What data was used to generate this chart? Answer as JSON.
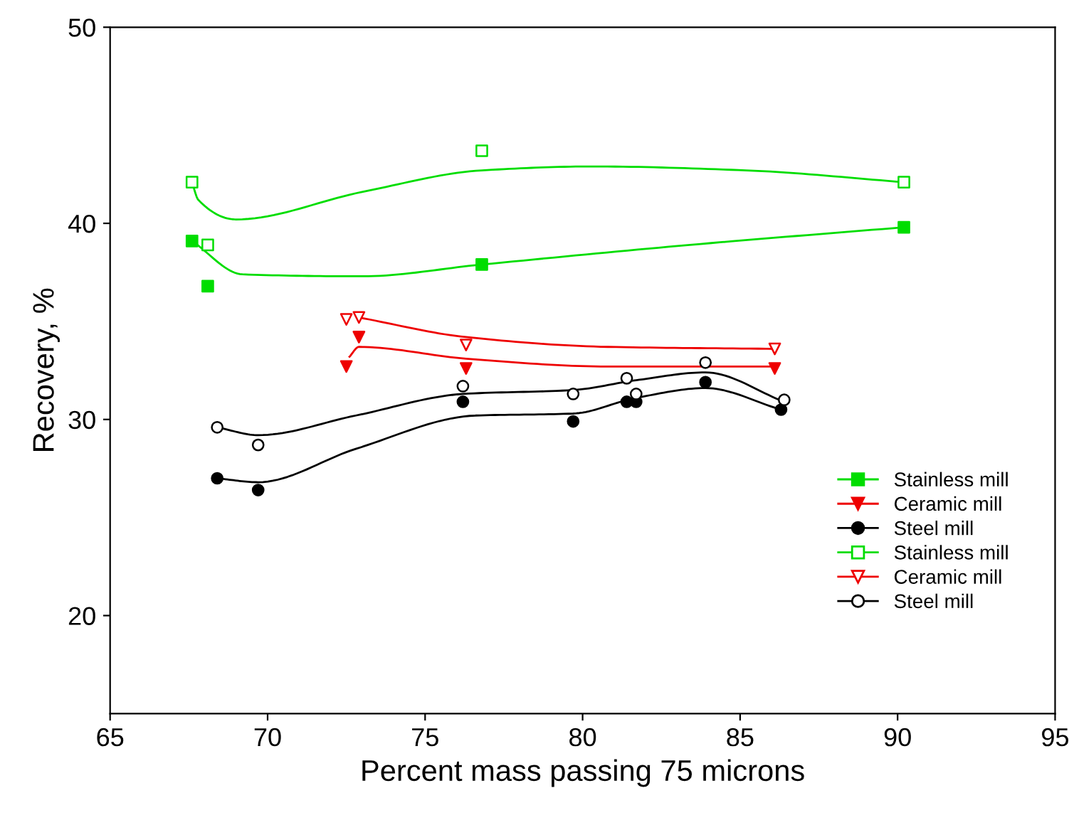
{
  "chart_data": {
    "type": "scatter",
    "xlabel": "Percent mass passing 75 microns",
    "ylabel": "Recovery, %",
    "xlim": [
      65,
      95
    ],
    "xticks": [
      65,
      70,
      75,
      80,
      85,
      90,
      95
    ],
    "ylim": [
      15,
      50
    ],
    "yticks": [
      20,
      30,
      40,
      50
    ],
    "grid": false,
    "legend": "right",
    "series": [
      {
        "name": "Stainless mill",
        "color": "#00dd00",
        "marker": "square",
        "x": [
          67.6,
          68.1,
          76.8,
          90.2
        ],
        "values": [
          39.1,
          36.8,
          37.9,
          39.8
        ]
      },
      {
        "name": "Ceramic mill",
        "color": "#ee0000",
        "marker": "triangle",
        "x": [
          72.5,
          72.9,
          76.3,
          86.1
        ],
        "values": [
          32.7,
          34.2,
          32.6,
          32.6
        ]
      },
      {
        "name": "Steel mill",
        "color": "#000000",
        "marker": "circle",
        "x": [
          68.4,
          69.7,
          76.2,
          79.7,
          81.4,
          81.7,
          83.9,
          86.3
        ],
        "values": [
          27.0,
          26.4,
          30.9,
          29.9,
          30.9,
          30.9,
          31.9,
          30.5
        ]
      },
      {
        "name": "Stainless mill",
        "color": "#00dd00",
        "colors": [
          "#ffffff",
          "#ffffff",
          "#ffffff",
          "#ffffff"
        ],
        "marker": "square",
        "x": [
          67.6,
          68.1,
          76.8,
          90.2
        ],
        "values": [
          42.1,
          38.9,
          43.7,
          42.1
        ]
      },
      {
        "name": "Ceramic mill",
        "color": "#ee0000",
        "colors": [
          "#ffffff",
          "#ffffff",
          "#ffffff",
          "#ffffff"
        ],
        "marker": "triangle",
        "x": [
          72.5,
          72.9,
          76.3,
          86.1
        ],
        "values": [
          35.1,
          35.2,
          33.8,
          33.6
        ]
      },
      {
        "name": "Steel mill",
        "color": "#000000",
        "colors": [
          "#ffffff",
          "#ffffff",
          "#ffffff",
          "#ffffff",
          "#ffffff",
          "#ffffff",
          "#ffffff",
          "#ffffff"
        ],
        "marker": "circle",
        "x": [
          68.4,
          69.7,
          76.2,
          79.7,
          81.4,
          81.7,
          83.9,
          86.4
        ],
        "values": [
          29.6,
          28.7,
          31.7,
          31.3,
          32.1,
          31.3,
          32.9,
          31.0
        ]
      },
      {
        "type": "line",
        "color": "#00dd00",
        "x": [
          67.6,
          69.2,
          73.0,
          76.8,
          83.4,
          90.2
        ],
        "values": [
          39.1,
          37.4,
          37.3,
          37.9,
          38.9,
          39.8
        ]
      },
      {
        "type": "line",
        "color": "#00dd00",
        "x": [
          67.6,
          67.8,
          69.0,
          73.0,
          76.8,
          80.3,
          85.2,
          90.2
        ],
        "values": [
          42.1,
          41.2,
          40.2,
          41.6,
          42.7,
          42.9,
          42.7,
          42.1
        ]
      },
      {
        "type": "line",
        "color": "#ee0000",
        "x": [
          72.6,
          72.9,
          76.3,
          80.8,
          86.1
        ],
        "values": [
          33.2,
          33.7,
          33.1,
          32.7,
          32.7
        ]
      },
      {
        "type": "line",
        "color": "#ee0000",
        "x": [
          72.9,
          76.3,
          80.8,
          86.1
        ],
        "values": [
          35.2,
          34.2,
          33.7,
          33.6
        ]
      },
      {
        "type": "line",
        "color": "#000000",
        "x": [
          68.4,
          69.7,
          72.8,
          76.6,
          79.7,
          81.7,
          83.9,
          86.3
        ],
        "values": [
          27.0,
          26.8,
          28.5,
          30.2,
          30.3,
          31.1,
          31.6,
          30.5
        ]
      },
      {
        "type": "line",
        "color": "#000000",
        "x": [
          68.4,
          69.7,
          72.8,
          76.2,
          79.7,
          81.7,
          83.9,
          86.4
        ],
        "values": [
          29.6,
          29.2,
          30.2,
          31.3,
          31.5,
          32.0,
          32.4,
          30.9
        ]
      }
    ]
  }
}
